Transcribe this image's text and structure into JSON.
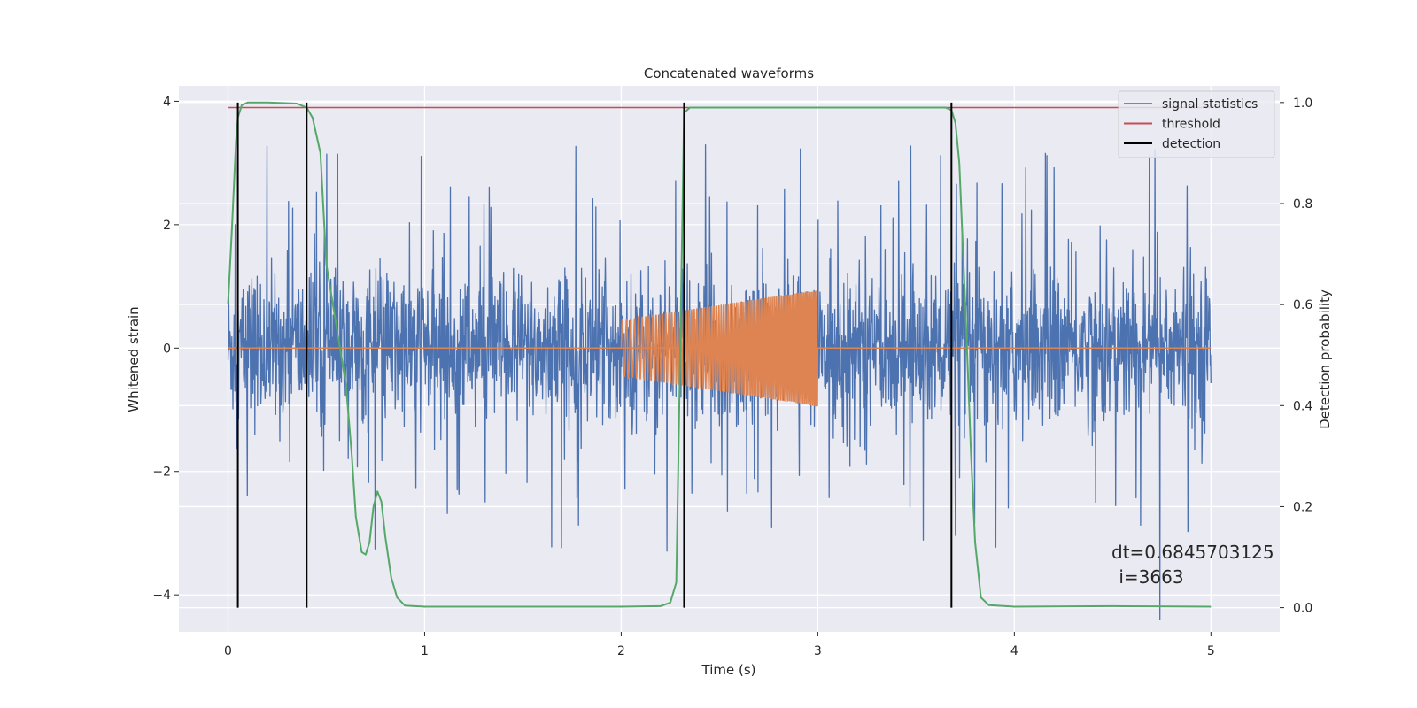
{
  "chart_data": {
    "type": "line",
    "title": "Concatenated waveforms",
    "xlabel": "Time (s)",
    "ylabel": "Whitened strain",
    "ylabel_right": "Detection probability",
    "xlim": [
      -0.25,
      5.35
    ],
    "ylim": [
      -4.6,
      4.25
    ],
    "ylim_right": [
      -0.048,
      1.033
    ],
    "x_ticks": [
      0,
      1,
      2,
      3,
      4,
      5
    ],
    "y_ticks": [
      -4,
      -2,
      0,
      2,
      4
    ],
    "y_ticks_right": [
      0.0,
      0.2,
      0.4,
      0.6,
      0.8,
      1.0
    ],
    "x_tick_labels": [
      "0",
      "1",
      "2",
      "3",
      "4",
      "5"
    ],
    "y_tick_labels": [
      "−4",
      "−2",
      "0",
      "2",
      "4"
    ],
    "y_tick_labels_right": [
      "0.0",
      "0.2",
      "0.4",
      "0.6",
      "0.8",
      "1.0"
    ],
    "grid": true,
    "legend_position": "top-right",
    "legend": [
      {
        "label": "signal statistics",
        "color": "#55a868"
      },
      {
        "label": "threshold",
        "color": "#c44e52"
      },
      {
        "label": "detection",
        "color": "#000000"
      }
    ],
    "noise": {
      "x_range": [
        0,
        5
      ],
      "amplitude_envelope": 1.0,
      "peak_max": 3.4,
      "peak_min": -4.4,
      "color": "#4c72b0"
    },
    "injected_signal": {
      "x_range": [
        2.0,
        3.0
      ],
      "amplitude_start": 0.45,
      "amplitude_end": 0.95,
      "baseline": 0,
      "color": "#dd8452"
    },
    "threshold": {
      "x_range": [
        0,
        5
      ],
      "value": 0.99
    },
    "detections": [
      0.05,
      0.4,
      2.32,
      3.68
    ],
    "signal_statistics": {
      "x": [
        0,
        0.02,
        0.04,
        0.05,
        0.07,
        0.1,
        0.2,
        0.35,
        0.4,
        0.43,
        0.47,
        0.5,
        0.55,
        0.6,
        0.63,
        0.65,
        0.68,
        0.7,
        0.72,
        0.74,
        0.76,
        0.78,
        0.8,
        0.83,
        0.86,
        0.9,
        1.0,
        1.5,
        2.0,
        2.2,
        2.25,
        2.28,
        2.3,
        2.32,
        2.35,
        2.5,
        3.0,
        3.5,
        3.65,
        3.68,
        3.7,
        3.72,
        3.75,
        3.78,
        3.8,
        3.83,
        3.87,
        4.0,
        4.5,
        5.0
      ],
      "y": [
        0.6,
        0.75,
        0.92,
        0.97,
        0.995,
        1.0,
        1.0,
        0.998,
        0.99,
        0.97,
        0.9,
        0.68,
        0.56,
        0.44,
        0.3,
        0.18,
        0.11,
        0.105,
        0.13,
        0.2,
        0.23,
        0.21,
        0.14,
        0.06,
        0.02,
        0.004,
        0.002,
        0.002,
        0.002,
        0.003,
        0.01,
        0.05,
        0.5,
        0.98,
        0.99,
        0.99,
        0.99,
        0.99,
        0.99,
        0.985,
        0.96,
        0.88,
        0.6,
        0.3,
        0.13,
        0.02,
        0.005,
        0.002,
        0.003,
        0.002
      ],
      "color": "#55a868"
    },
    "annotation": {
      "line1": "dt=0.6845703125",
      "line2": " i=3663"
    }
  }
}
